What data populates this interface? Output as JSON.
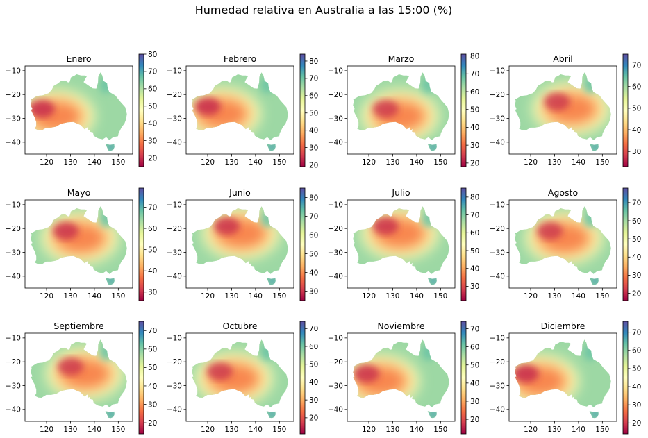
{
  "title": "Humedad relativa en Australia a las 15:00 (%)",
  "chart_data": {
    "type": "heatmap",
    "colormap": "Spectral",
    "colors": {
      "low": "#9e0142",
      "mid": "#ffffbf",
      "high": "#5e4fa2"
    },
    "xticks": [
      "120",
      "130",
      "140",
      "150"
    ],
    "yticks": [
      "-10",
      "-20",
      "-30",
      "-40"
    ],
    "xlim": [
      111,
      156
    ],
    "ylim": [
      -45,
      -8
    ],
    "panels": [
      {
        "title": "Enero",
        "vmin": 15,
        "vmax": 80,
        "cticks": [
          "20",
          "30",
          "40",
          "50",
          "60",
          "70",
          "80"
        ]
      },
      {
        "title": "Febrero",
        "vmin": 19,
        "vmax": 84,
        "cticks": [
          "20",
          "30",
          "40",
          "50",
          "60",
          "70",
          "80"
        ]
      },
      {
        "title": "Marzo",
        "vmin": 18,
        "vmax": 81,
        "cticks": [
          "20",
          "30",
          "40",
          "50",
          "60",
          "70",
          "80"
        ]
      },
      {
        "title": "Abril",
        "vmin": 23,
        "vmax": 75,
        "cticks": [
          "30",
          "40",
          "50",
          "60",
          "70"
        ]
      },
      {
        "title": "Mayo",
        "vmin": 26,
        "vmax": 79,
        "cticks": [
          "30",
          "40",
          "50",
          "60",
          "70"
        ]
      },
      {
        "title": "Junio",
        "vmin": 25,
        "vmax": 85,
        "cticks": [
          "30",
          "40",
          "50",
          "60",
          "70",
          "80"
        ]
      },
      {
        "title": "Julio",
        "vmin": 22,
        "vmax": 85,
        "cticks": [
          "30",
          "40",
          "50",
          "60",
          "70",
          "80"
        ]
      },
      {
        "title": "Agosto",
        "vmin": 16,
        "vmax": 78,
        "cticks": [
          "20",
          "30",
          "40",
          "50",
          "60",
          "70"
        ]
      },
      {
        "title": "Septiembre",
        "vmin": 14,
        "vmax": 75,
        "cticks": [
          "20",
          "30",
          "40",
          "50",
          "60",
          "70"
        ]
      },
      {
        "title": "Octubre",
        "vmin": 11,
        "vmax": 74,
        "cticks": [
          "20",
          "30",
          "40",
          "50",
          "60",
          "70"
        ]
      },
      {
        "title": "Noviembre",
        "vmin": 12,
        "vmax": 74,
        "cticks": [
          "20",
          "30",
          "40",
          "50",
          "60",
          "70"
        ]
      },
      {
        "title": "Diciembre",
        "vmin": 14,
        "vmax": 76,
        "cticks": [
          "20",
          "30",
          "40",
          "50",
          "60",
          "70"
        ]
      }
    ]
  }
}
